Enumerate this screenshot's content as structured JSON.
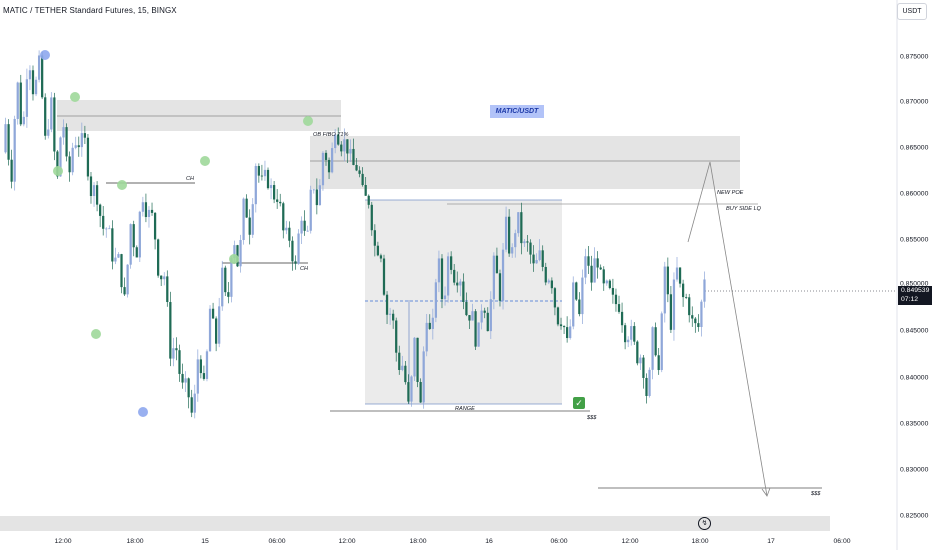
{
  "header": {
    "title": "MATIC / TETHER Standard Futures, 15, BINGX",
    "currency_button": "USDT"
  },
  "price_axis": {
    "labels": [
      "0.875000",
      "0.870000",
      "0.865000",
      "0.860000",
      "0.855000",
      "0.850000",
      "0.845000",
      "0.840000",
      "0.835000",
      "0.830000",
      "0.825000"
    ]
  },
  "time_axis": {
    "labels": [
      "12:00",
      "18:00",
      "15",
      "06:00",
      "12:00",
      "18:00",
      "16",
      "06:00",
      "12:00",
      "18:00",
      "17",
      "06:00"
    ]
  },
  "current_price": {
    "price": "0.849539",
    "countdown": "07:12"
  },
  "annotations": {
    "ob": "OB FIBO 71%",
    "ch1": "CH",
    "ch2": "CH",
    "new_poe": "NEW POE",
    "buy_side": "BUY SIDE LQ",
    "range": "RANGE",
    "dollars1": "$$$",
    "dollars2": "$$$",
    "symbol_label": "MATIC/USDT"
  },
  "icons": {
    "check": "check-icon",
    "bolt": "lightning-icon"
  },
  "colors": {
    "up": "#8fa7d9",
    "down": "#1f6b55",
    "zone": "#e4e4e4",
    "green_marker": "#9ed89a",
    "blue_marker": "#8ea7ee",
    "dashed_line": "#3b6fd4"
  },
  "chart_data": {
    "type": "candlestick",
    "symbol": "MATIC / TETHER Standard Futures",
    "interval": "15",
    "exchange": "BINGX",
    "ylim": [
      0.8245,
      0.879
    ],
    "last_price": 0.849539,
    "path": [
      [
        0.862,
        0.868
      ],
      [
        0.8665,
        0.873
      ],
      [
        0.871,
        0.876
      ],
      [
        0.866,
        0.8745
      ],
      [
        0.861,
        0.8705
      ],
      [
        0.8615,
        0.8695
      ],
      [
        0.866,
        0.8665
      ],
      [
        0.861,
        0.866
      ],
      [
        0.857,
        0.861
      ],
      [
        0.8535,
        0.857
      ],
      [
        0.849,
        0.8535
      ],
      [
        0.854,
        0.8575
      ],
      [
        0.8585,
        0.861
      ],
      [
        0.852,
        0.858
      ],
      [
        0.844,
        0.852
      ],
      [
        0.84,
        0.8445
      ],
      [
        0.8365,
        0.84
      ],
      [
        0.8395,
        0.8445
      ],
      [
        0.8445,
        0.8485
      ],
      [
        0.848,
        0.8525
      ],
      [
        0.8525,
        0.857
      ],
      [
        0.857,
        0.86
      ],
      [
        0.8615,
        0.864
      ],
      [
        0.8605,
        0.8625
      ],
      [
        0.856,
        0.8605
      ],
      [
        0.8525,
        0.856
      ],
      [
        0.8545,
        0.859
      ],
      [
        0.859,
        0.8625
      ],
      [
        0.8625,
        0.866
      ],
      [
        0.866,
        0.868
      ],
      [
        0.8635,
        0.866
      ],
      [
        0.86,
        0.8635
      ],
      [
        0.855,
        0.86
      ],
      [
        0.848,
        0.855
      ],
      [
        0.8425,
        0.848
      ],
      [
        0.8375,
        0.8425
      ],
      [
        0.8375,
        0.845
      ],
      [
        0.8445,
        0.8485
      ],
      [
        0.8485,
        0.8545
      ],
      [
        0.852,
        0.8545
      ],
      [
        0.848,
        0.852
      ],
      [
        0.8445,
        0.848
      ],
      [
        0.8465,
        0.85
      ],
      [
        0.85,
        0.8535
      ],
      [
        0.8535,
        0.8575
      ],
      [
        0.855,
        0.8585
      ],
      [
        0.8525,
        0.855
      ],
      [
        0.852,
        0.854
      ],
      [
        0.8475,
        0.852
      ],
      [
        0.844,
        0.8475
      ],
      [
        0.8475,
        0.851
      ],
      [
        0.851,
        0.8545
      ],
      [
        0.8505,
        0.8545
      ],
      [
        0.849,
        0.8505
      ],
      [
        0.846,
        0.849
      ],
      [
        0.8435,
        0.846
      ],
      [
        0.8385,
        0.8435
      ],
      [
        0.8415,
        0.8465
      ],
      [
        0.8465,
        0.853
      ],
      [
        0.8495,
        0.853
      ],
      [
        0.8465,
        0.8495
      ],
      [
        0.852,
        0.8465
      ]
    ]
  }
}
